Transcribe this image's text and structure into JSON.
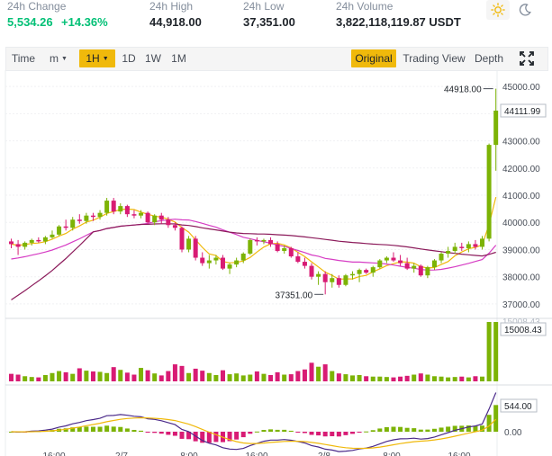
{
  "stats": {
    "change_label": "24h Change",
    "change_value": "5,534.26",
    "change_pct": "+14.36%",
    "high_label": "24h High",
    "high_value": "44,918.00",
    "low_label": "24h Low",
    "low_value": "37,351.00",
    "volume_label": "24h Volume",
    "volume_value": "3,822,118,119.87 USDT"
  },
  "toolbar": {
    "time_label": "Time",
    "minute_label": "m",
    "hour_label": "1H",
    "day_label": "1D",
    "week_label": "1W",
    "month_label": "1M",
    "original_label": "Original",
    "tradingview_label": "Trading View",
    "depth_label": "Depth"
  },
  "colors": {
    "up": "#7cb305",
    "down": "#d81b74",
    "accent": "#f0b90b",
    "ma_fast": "#f0b90b",
    "ma_mid": "#d63cc4",
    "ma_slow": "#8b1a5a",
    "positive_text": "#02c076"
  },
  "icons": {
    "light_theme": "sun-icon",
    "dark_theme": "moon-icon",
    "fullscreen": "expand-icon"
  },
  "chart_data": {
    "type": "candlestick",
    "price_axis": {
      "ticks": [
        "45000.00",
        "44000.00",
        "43000.00",
        "42000.00",
        "41000.00",
        "40000.00",
        "39000.00",
        "38000.00",
        "37000.00"
      ],
      "range": [
        36600,
        45600
      ]
    },
    "high_marker": "44918.00",
    "low_marker": "37351.00",
    "current_price_label": "44111.99",
    "volume_label": "15008.43",
    "volume_top_label": "15008.43",
    "macd_labels": [
      "544.00",
      "0.00"
    ],
    "x_axis_labels": [
      "16:00",
      "2/7",
      "8:00",
      "16:00",
      "2/8",
      "8:00",
      "16:00"
    ],
    "candles": [
      [
        39300,
        39400,
        39050,
        39200
      ],
      [
        39200,
        39350,
        38800,
        39100
      ],
      [
        39100,
        39300,
        39000,
        39250
      ],
      [
        39250,
        39400,
        39150,
        39350
      ],
      [
        39350,
        39450,
        39250,
        39300
      ],
      [
        39300,
        39500,
        39200,
        39450
      ],
      [
        39450,
        39700,
        39400,
        39550
      ],
      [
        39550,
        39900,
        39500,
        39850
      ],
      [
        39850,
        40100,
        39700,
        39800
      ],
      [
        39800,
        40200,
        39700,
        40100
      ],
      [
        40100,
        40300,
        39950,
        40050
      ],
      [
        40050,
        40350,
        39950,
        40250
      ],
      [
        40250,
        40350,
        40050,
        40200
      ],
      [
        40200,
        40450,
        40100,
        40350
      ],
      [
        40350,
        40900,
        40250,
        40800
      ],
      [
        40800,
        40900,
        40300,
        40400
      ],
      [
        40400,
        40700,
        40300,
        40600
      ],
      [
        40600,
        40650,
        40200,
        40300
      ],
      [
        40300,
        40450,
        40150,
        40250
      ],
      [
        40250,
        40450,
        40150,
        40350
      ],
      [
        40350,
        40400,
        39950,
        40000
      ],
      [
        40000,
        40300,
        39900,
        40250
      ],
      [
        40250,
        40350,
        39950,
        40100
      ],
      [
        40100,
        40200,
        39800,
        39900
      ],
      [
        39900,
        40000,
        39700,
        39800
      ],
      [
        39800,
        39850,
        38900,
        39000
      ],
      [
        39000,
        39500,
        38900,
        39400
      ],
      [
        39400,
        39500,
        38600,
        38700
      ],
      [
        38700,
        38900,
        38400,
        38500
      ],
      [
        38500,
        38800,
        38300,
        38600
      ],
      [
        38600,
        38800,
        38450,
        38700
      ],
      [
        38700,
        38800,
        38250,
        38300
      ],
      [
        38300,
        38500,
        38100,
        38450
      ],
      [
        38450,
        38700,
        38350,
        38600
      ],
      [
        38600,
        38900,
        38500,
        38850
      ],
      [
        38850,
        39400,
        38800,
        39350
      ],
      [
        39350,
        39450,
        39150,
        39300
      ],
      [
        39300,
        39400,
        39200,
        39350
      ],
      [
        39350,
        39450,
        39100,
        39200
      ],
      [
        39200,
        39300,
        38900,
        38950
      ],
      [
        38950,
        39150,
        38850,
        39050
      ],
      [
        39050,
        39100,
        38700,
        38750
      ],
      [
        38750,
        38900,
        38500,
        38550
      ],
      [
        38550,
        38700,
        38300,
        38400
      ],
      [
        38400,
        38500,
        37900,
        38000
      ],
      [
        38000,
        38200,
        37700,
        38100
      ],
      [
        38100,
        38200,
        37351,
        37800
      ],
      [
        37800,
        38100,
        37600,
        37950
      ],
      [
        37950,
        38050,
        37600,
        37700
      ],
      [
        37700,
        38100,
        37650,
        38050
      ],
      [
        38050,
        38200,
        37900,
        38100
      ],
      [
        38100,
        38300,
        37800,
        38250
      ],
      [
        38250,
        38300,
        38100,
        38150
      ],
      [
        38150,
        38400,
        38000,
        38350
      ],
      [
        38350,
        38650,
        38300,
        38600
      ],
      [
        38600,
        38750,
        38500,
        38700
      ],
      [
        38700,
        38900,
        38550,
        38600
      ],
      [
        38600,
        38800,
        38400,
        38500
      ],
      [
        38500,
        38700,
        38250,
        38300
      ],
      [
        38300,
        38500,
        38150,
        38400
      ],
      [
        38400,
        38450,
        38000,
        38050
      ],
      [
        38050,
        38400,
        37950,
        38350
      ],
      [
        38350,
        38650,
        38250,
        38600
      ],
      [
        38600,
        38900,
        38500,
        38850
      ],
      [
        38850,
        39100,
        38700,
        38950
      ],
      [
        38950,
        39250,
        38850,
        39100
      ],
      [
        39100,
        39250,
        38950,
        39050
      ],
      [
        39050,
        39300,
        38900,
        39200
      ],
      [
        39200,
        39350,
        39000,
        39100
      ],
      [
        39100,
        39500,
        39000,
        39400
      ],
      [
        39400,
        42900,
        39300,
        42850
      ],
      [
        42850,
        44918,
        41900,
        44111
      ]
    ],
    "volumes": [
      1900,
      1700,
      1300,
      1100,
      1000,
      1600,
      2100,
      2600,
      2300,
      1900,
      3300,
      2700,
      2500,
      2400,
      2100,
      3600,
      2900,
      2200,
      1700,
      3400,
      2800,
      2000,
      1500,
      2600,
      4300,
      3900,
      2100,
      3200,
      2700,
      2100,
      1600,
      2800,
      1800,
      2000,
      1500,
      1700,
      2500,
      1900,
      1600,
      2300,
      1700,
      1800,
      2600,
      3000,
      4700,
      3700,
      4300,
      2600,
      2000,
      1800,
      1500,
      1600,
      1300,
      1200,
      1200,
      1100,
      1000,
      1200,
      1400,
      1700,
      2000,
      1700,
      1300,
      1200,
      1000,
      1100,
      1200,
      1000,
      1300,
      1200,
      15008,
      15008
    ]
  }
}
